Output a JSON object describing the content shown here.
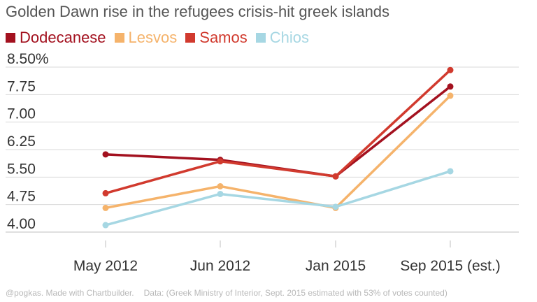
{
  "chart_data": {
    "type": "line",
    "title": "Golden Dawn rise in the refugees crisis-hit greek islands",
    "categories": [
      "May 2012",
      "Jun 2012",
      "Jan 2015",
      "Sep 2015 (est.)"
    ],
    "series": [
      {
        "name": "Dodecanese",
        "color": "#a3111f",
        "values": [
          6.12,
          5.97,
          5.52,
          7.97
        ]
      },
      {
        "name": "Lesvos",
        "color": "#f5b36b",
        "values": [
          4.66,
          5.25,
          4.66,
          7.72
        ]
      },
      {
        "name": "Samos",
        "color": "#d13a2e",
        "values": [
          5.06,
          5.93,
          5.52,
          8.42
        ]
      },
      {
        "name": "Chios",
        "color": "#a6d7e3",
        "values": [
          4.19,
          5.04,
          4.69,
          5.66
        ]
      }
    ],
    "ylim": [
      4.0,
      8.5
    ],
    "yticks": [
      {
        "value": 8.5,
        "label": "8.50%"
      },
      {
        "value": 7.75,
        "label": "7.75"
      },
      {
        "value": 7.0,
        "label": "7.00"
      },
      {
        "value": 6.25,
        "label": "6.25"
      },
      {
        "value": 5.5,
        "label": "5.50"
      },
      {
        "value": 4.75,
        "label": "4.75"
      },
      {
        "value": 4.0,
        "label": "4.00"
      }
    ],
    "grid": true,
    "legend_position": "top-left"
  },
  "footer": {
    "credit": "@pogkas. Made with Chartbuilder.",
    "source": "Data: (Greek Ministry of Interior, Sept. 2015 estimated with 53% of votes counted)"
  }
}
